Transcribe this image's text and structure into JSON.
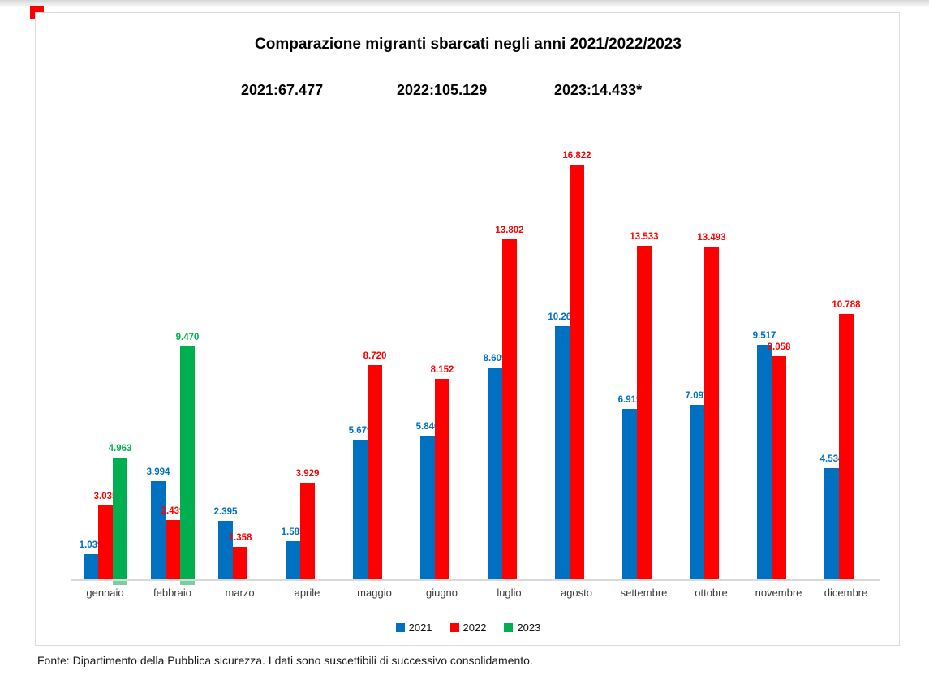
{
  "page": {
    "title": "Comparazione migranti sbarcati negli anni 2021/2022/2023",
    "totals": [
      "2021:67.477",
      "2022:105.129",
      "2023:14.433*"
    ],
    "footer": "Fonte: Dipartimento della Pubblica sicurezza. I dati sono suscettibili di successivo consolidamento."
  },
  "chart_data": {
    "type": "bar",
    "title": "Comparazione migranti sbarcati negli anni 2021/2022/2023",
    "subtitle_totals": {
      "2021": "67.477",
      "2022": "105.129",
      "2023": "14.433*"
    },
    "categories": [
      "gennaio",
      "febbraio",
      "marzo",
      "aprile",
      "maggio",
      "giugno",
      "luglio",
      "agosto",
      "settembre",
      "ottobre",
      "novembre",
      "dicembre"
    ],
    "series": [
      {
        "name": "2021",
        "color": "#0070C0",
        "values": [
          1039,
          3994,
          2395,
          1585,
          5679,
          5840,
          8609,
          10269,
          6919,
          7097,
          9517,
          4534
        ]
      },
      {
        "name": "2022",
        "color": "#FF0000",
        "values": [
          3035,
          2439,
          1358,
          3929,
          8720,
          8152,
          13802,
          16822,
          13533,
          13493,
          9058,
          10788
        ]
      },
      {
        "name": "2023",
        "color": "#00B050",
        "values": [
          4963,
          9470,
          null,
          null,
          null,
          null,
          null,
          null,
          null,
          null,
          null,
          null
        ]
      }
    ],
    "ylim": [
      0,
      17000
    ],
    "grid": false,
    "axis_visible": "x-only",
    "data_labels": true,
    "label_format": "it-thousands-dot",
    "legend_position": "bottom"
  },
  "colors": {
    "axis": "#D9D9D9",
    "frame": "#DBDBDB",
    "green_shadow": "#7CCE9F",
    "top_left_marker": "#FB0000"
  }
}
